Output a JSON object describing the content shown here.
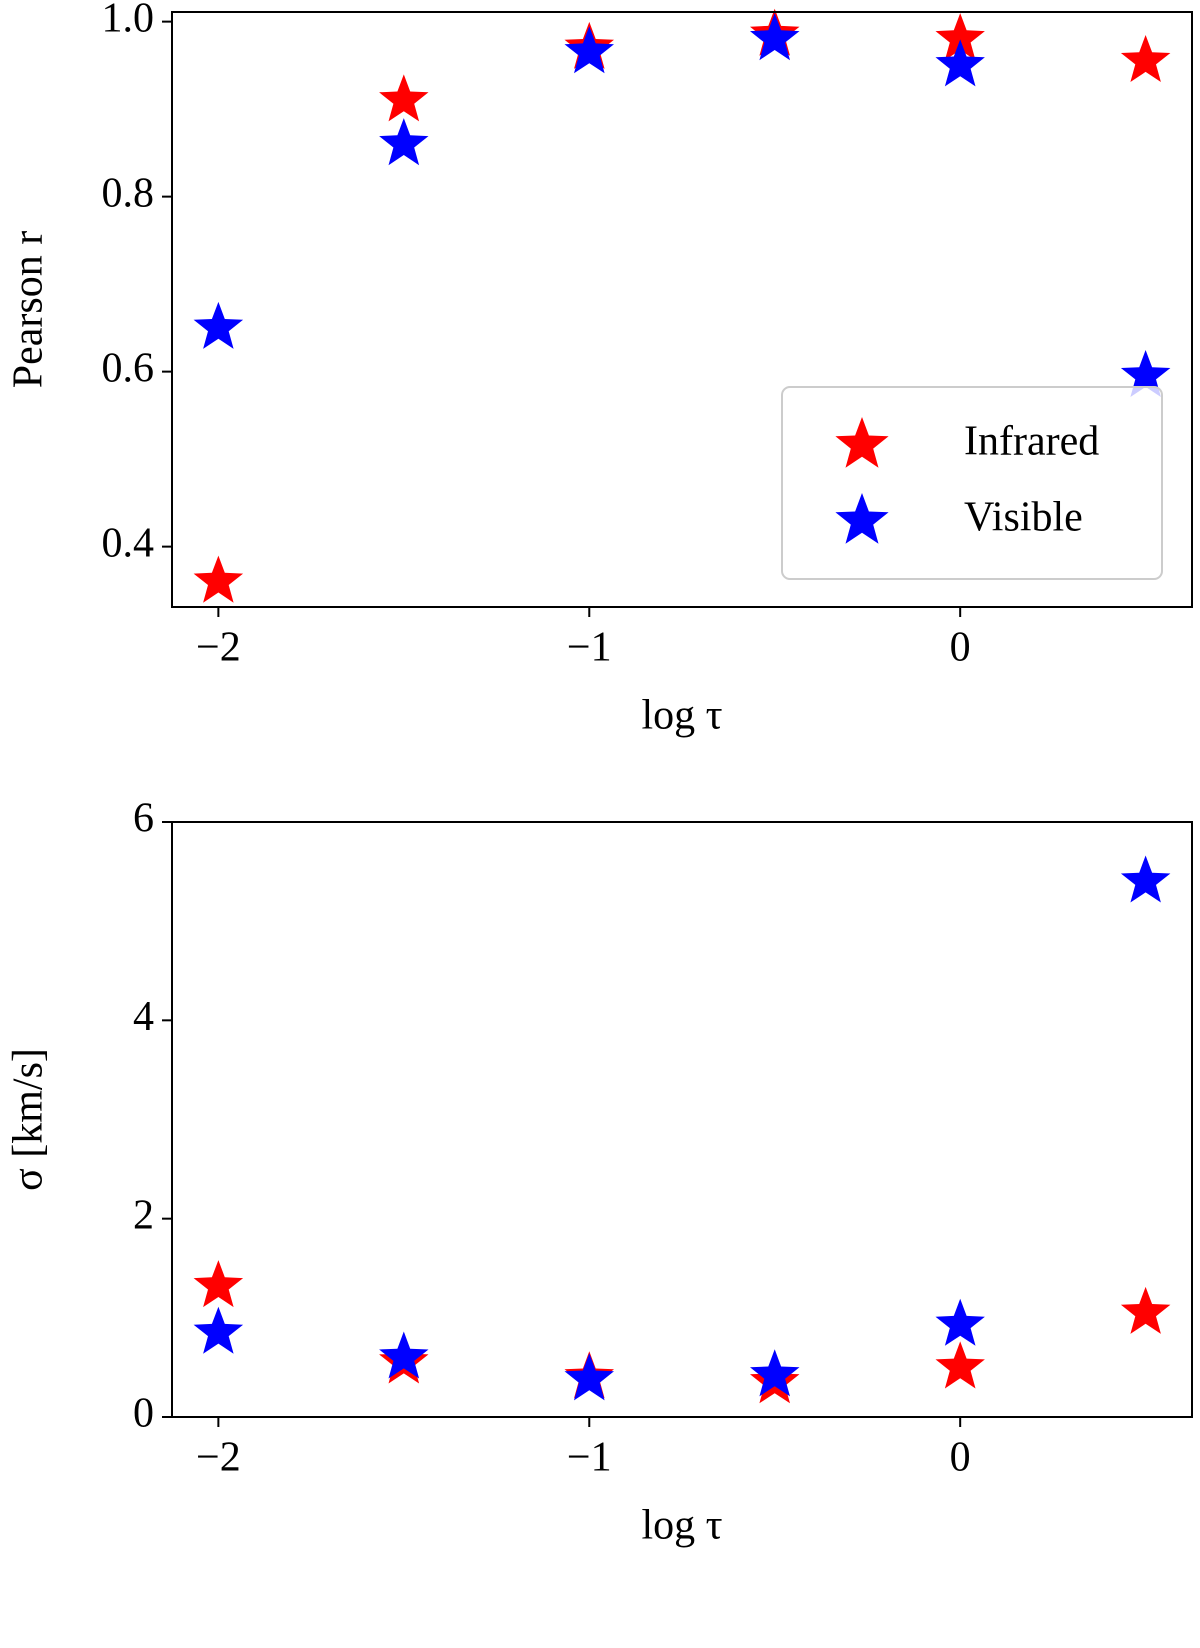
{
  "chart_data": [
    {
      "type": "scatter",
      "marker": "star",
      "xlabel": "log τ",
      "ylabel": "Pearson r",
      "x": [
        -2,
        -1.5,
        -1,
        -0.5,
        0,
        0.5
      ],
      "series": [
        {
          "name": "Infrared",
          "color": "red",
          "values": [
            0.36,
            0.91,
            0.97,
            0.985,
            0.98,
            0.955
          ]
        },
        {
          "name": "Visible",
          "color": "blue",
          "values": [
            0.65,
            0.86,
            0.965,
            0.98,
            0.95,
            0.595
          ]
        }
      ],
      "xlim": [
        -2.125,
        0.625
      ],
      "xticks": [
        {
          "value": -2,
          "label": "−2"
        },
        {
          "value": -1,
          "label": "−1"
        },
        0
      ],
      "ylim": [
        0.331,
        1.011
      ],
      "yticks": [
        0.4,
        0.6,
        0.8,
        {
          "value": 1,
          "label": "1.0"
        }
      ],
      "legend": "lower right"
    },
    {
      "type": "scatter",
      "marker": "star",
      "xlabel": "log τ",
      "ylabel": "σ [km/s]",
      "x": [
        -2,
        -1.5,
        -1,
        -0.5,
        0,
        0.5
      ],
      "series": [
        {
          "color": "red",
          "values": [
            1.32,
            0.55,
            0.4,
            0.35,
            0.5,
            1.05
          ]
        },
        {
          "color": "blue",
          "values": [
            0.85,
            0.6,
            0.38,
            0.42,
            0.93,
            5.4
          ]
        }
      ],
      "xlim": [
        -2.125,
        0.625
      ],
      "xticks": [
        {
          "value": -2,
          "label": "−2"
        },
        {
          "value": -1,
          "label": "−1"
        },
        0
      ],
      "ylim": [
        0,
        6
      ],
      "yticks": [
        0,
        2,
        4,
        6
      ]
    }
  ]
}
